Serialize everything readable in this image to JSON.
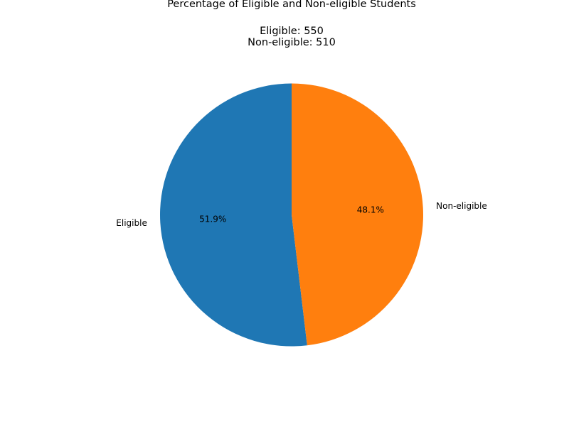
{
  "chart_data": {
    "type": "pie",
    "title": "Percentage of Eligible and Non-eligible Students",
    "subtitle_lines": [
      "Eligible: 550",
      "Non-eligible: 510"
    ],
    "categories": [
      "Eligible",
      "Non-eligible"
    ],
    "values": [
      550,
      510
    ],
    "percent_labels": [
      "51.9%",
      "48.1%"
    ],
    "colors": [
      "#1f77b4",
      "#ff7f0e"
    ],
    "start_angle_deg": 90,
    "direction": "counterclockwise",
    "legend": "none"
  }
}
